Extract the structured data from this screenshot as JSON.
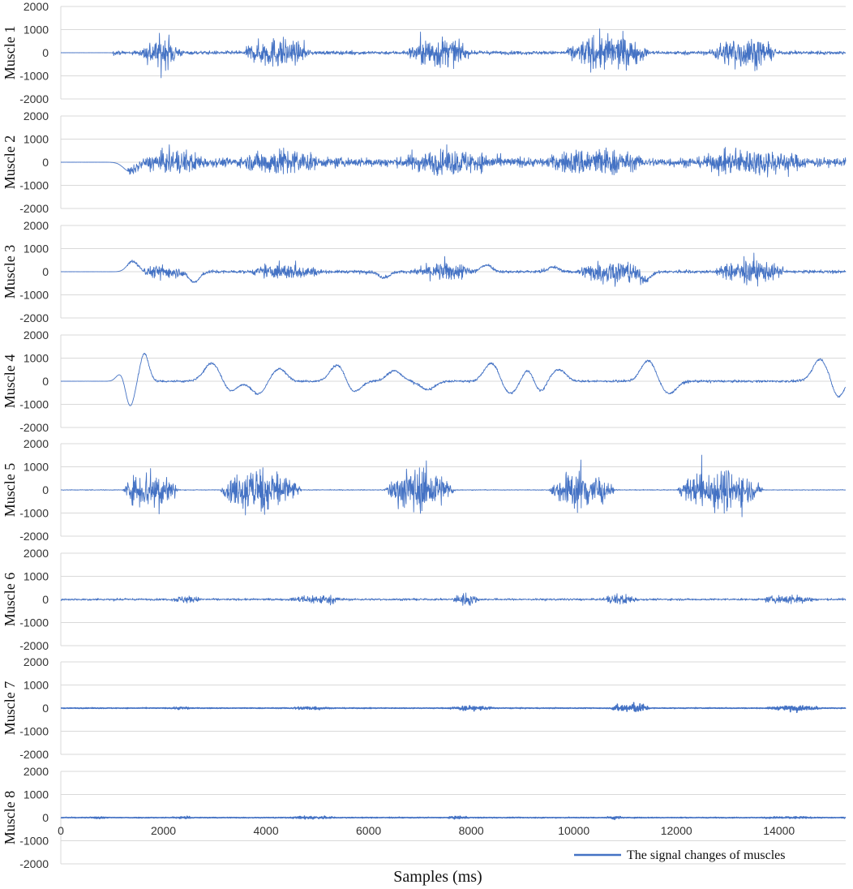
{
  "chart_data": {
    "type": "line",
    "xlabel": "Samples (ms)",
    "x_ticks": [
      0,
      2000,
      4000,
      6000,
      8000,
      10000,
      12000,
      14000
    ],
    "xlim": [
      0,
      15300
    ],
    "ylim": [
      -2000,
      2000
    ],
    "y_ticks": [
      2000,
      1000,
      0,
      -1000,
      -2000
    ],
    "grid": true,
    "line_color": "#4472C4",
    "legend": {
      "label": "The signal changes of  muscles",
      "position": "bottom-right"
    },
    "panels": [
      {
        "label": "Muscle 1",
        "bursts": [
          {
            "start": 1500,
            "end": 2400,
            "amp": 1100
          },
          {
            "start": 3500,
            "end": 4900,
            "amp": 1100
          },
          {
            "start": 6700,
            "end": 8000,
            "amp": 1150
          },
          {
            "start": 9800,
            "end": 11500,
            "amp": 1300
          },
          {
            "start": 12600,
            "end": 14000,
            "amp": 1150
          }
        ],
        "baseline": 130,
        "baseline_start": 1000,
        "slow_waves": []
      },
      {
        "label": "Muscle 2",
        "bursts": [
          {
            "start": 1500,
            "end": 3000,
            "amp": 900
          },
          {
            "start": 3400,
            "end": 5200,
            "amp": 1000
          },
          {
            "start": 6400,
            "end": 8800,
            "amp": 900
          },
          {
            "start": 9300,
            "end": 11500,
            "amp": 1050
          },
          {
            "start": 12200,
            "end": 14800,
            "amp": 950
          }
        ],
        "baseline": 320,
        "baseline_start": 1300,
        "slow_waves": [
          {
            "center": 1350,
            "width": 180,
            "amp": -400
          }
        ]
      },
      {
        "label": "Muscle 3",
        "bursts": [
          {
            "start": 1500,
            "end": 2500,
            "amp": 500
          },
          {
            "start": 3600,
            "end": 5200,
            "amp": 550
          },
          {
            "start": 6800,
            "end": 8200,
            "amp": 650
          },
          {
            "start": 10000,
            "end": 11500,
            "amp": 900
          },
          {
            "start": 12700,
            "end": 14200,
            "amp": 850
          }
        ],
        "baseline": 110,
        "baseline_start": 1300,
        "slow_waves": [
          {
            "center": 1400,
            "width": 150,
            "amp": 450
          },
          {
            "center": 2600,
            "width": 150,
            "amp": -450
          },
          {
            "center": 6300,
            "width": 150,
            "amp": -250
          },
          {
            "center": 8300,
            "width": 150,
            "amp": 300
          },
          {
            "center": 9600,
            "width": 150,
            "amp": 200
          },
          {
            "center": 11400,
            "width": 150,
            "amp": -350
          }
        ]
      },
      {
        "label": "Muscle 4",
        "bursts": [],
        "baseline": 80,
        "baseline_start": 1500,
        "slow_waves": [
          {
            "center": 1170,
            "width": 120,
            "amp": 350
          },
          {
            "center": 1350,
            "width": 120,
            "amp": -1100
          },
          {
            "center": 1630,
            "width": 120,
            "amp": 1200
          },
          {
            "center": 2950,
            "width": 220,
            "amp": 800
          },
          {
            "center": 3300,
            "width": 200,
            "amp": -450
          },
          {
            "center": 3850,
            "width": 200,
            "amp": -550
          },
          {
            "center": 4250,
            "width": 200,
            "amp": 550
          },
          {
            "center": 5400,
            "width": 200,
            "amp": 750
          },
          {
            "center": 5700,
            "width": 200,
            "amp": -500
          },
          {
            "center": 6500,
            "width": 200,
            "amp": 450
          },
          {
            "center": 7150,
            "width": 200,
            "amp": -350
          },
          {
            "center": 8400,
            "width": 200,
            "amp": 800
          },
          {
            "center": 8750,
            "width": 200,
            "amp": -550
          },
          {
            "center": 9100,
            "width": 150,
            "amp": 500
          },
          {
            "center": 9350,
            "width": 150,
            "amp": -450
          },
          {
            "center": 9700,
            "width": 200,
            "amp": 500
          },
          {
            "center": 11450,
            "width": 200,
            "amp": 900
          },
          {
            "center": 11850,
            "width": 200,
            "amp": -550
          },
          {
            "center": 14800,
            "width": 200,
            "amp": 950
          },
          {
            "center": 15150,
            "width": 150,
            "amp": -700
          }
        ]
      },
      {
        "label": "Muscle 5",
        "bursts": [
          {
            "start": 1200,
            "end": 2300,
            "amp": 1500
          },
          {
            "start": 3100,
            "end": 4700,
            "amp": 1700
          },
          {
            "start": 6300,
            "end": 7700,
            "amp": 1650
          },
          {
            "start": 9500,
            "end": 10800,
            "amp": 1450
          },
          {
            "start": 12000,
            "end": 13700,
            "amp": 1550
          }
        ],
        "baseline": 25,
        "baseline_start": 0,
        "slow_waves": []
      },
      {
        "label": "Muscle 6",
        "bursts": [
          {
            "start": 2100,
            "end": 2800,
            "amp": 280
          },
          {
            "start": 4400,
            "end": 5600,
            "amp": 350
          },
          {
            "start": 7600,
            "end": 8200,
            "amp": 450
          },
          {
            "start": 10500,
            "end": 11300,
            "amp": 400
          },
          {
            "start": 13600,
            "end": 14800,
            "amp": 350
          }
        ],
        "baseline": 70,
        "baseline_start": 0,
        "slow_waves": []
      },
      {
        "label": "Muscle 7",
        "bursts": [
          {
            "start": 2100,
            "end": 2600,
            "amp": 100
          },
          {
            "start": 4400,
            "end": 5300,
            "amp": 130
          },
          {
            "start": 7500,
            "end": 8500,
            "amp": 170
          },
          {
            "start": 10700,
            "end": 11500,
            "amp": 350
          },
          {
            "start": 13700,
            "end": 14900,
            "amp": 170
          }
        ],
        "baseline": 25,
        "baseline_start": 0,
        "slow_waves": []
      },
      {
        "label": "Muscle 8",
        "bursts": [
          {
            "start": 600,
            "end": 900,
            "amp": 90
          },
          {
            "start": 2100,
            "end": 2600,
            "amp": 80
          },
          {
            "start": 4400,
            "end": 5400,
            "amp": 110
          },
          {
            "start": 7500,
            "end": 8000,
            "amp": 100
          },
          {
            "start": 10600,
            "end": 11000,
            "amp": 120
          },
          {
            "start": 13600,
            "end": 14800,
            "amp": 80
          }
        ],
        "baseline": 25,
        "baseline_start": 0,
        "slow_waves": []
      }
    ]
  }
}
